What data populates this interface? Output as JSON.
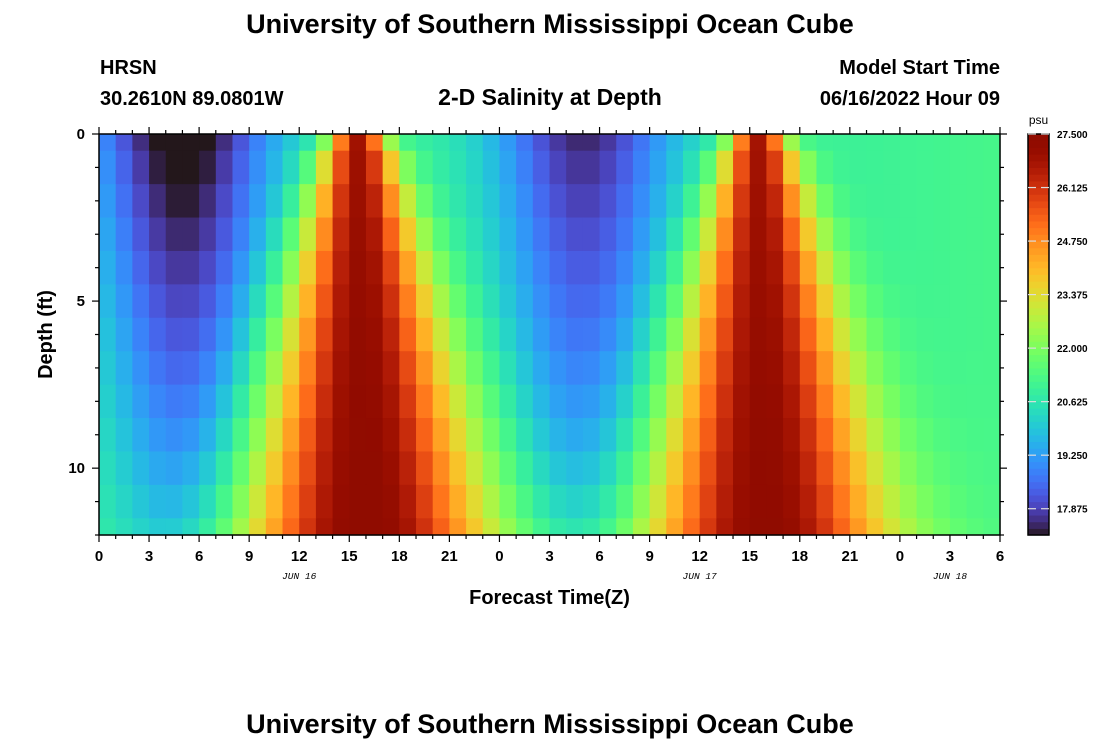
{
  "header": {
    "main_title": "University of Southern Mississippi Ocean Cube",
    "station_name": "HRSN",
    "station_coords": "30.2610N  89.0801W",
    "chart_title": "2-D Salinity at Depth",
    "model_start_label": "Model Start Time",
    "model_start_value": "06/16/2022 Hour 09"
  },
  "footer": {
    "repeated_title": "University of Southern Mississippi Ocean Cube"
  },
  "chart_data": {
    "type": "heatmap",
    "title": "2-D Salinity at Depth",
    "xlabel": "Forecast Time(Z)",
    "ylabel": "Depth (ft)",
    "x_tick_labels": [
      "0",
      "3",
      "6",
      "9",
      "12",
      "15",
      "18",
      "21",
      "0",
      "3",
      "6",
      "9",
      "12",
      "15",
      "18",
      "21",
      "0",
      "3",
      "6"
    ],
    "x_hours": [
      0,
      3,
      6,
      9,
      12,
      15,
      18,
      21,
      24,
      27,
      30,
      33,
      36,
      39,
      42,
      45,
      48,
      51,
      54
    ],
    "x_range_hours": [
      0,
      54
    ],
    "date_labels": [
      {
        "text": "JUN 16",
        "hour": 12
      },
      {
        "text": "JUN 17",
        "hour": 36
      },
      {
        "text": "JUN 18",
        "hour": 51
      }
    ],
    "y_tick_labels": [
      "0",
      "5",
      "10"
    ],
    "y_ticks_ft": [
      0,
      5,
      10
    ],
    "y_range_ft": [
      0,
      12
    ],
    "y_inverted": true,
    "depth_levels_ft": [
      0,
      1,
      2,
      3,
      4,
      5,
      6,
      7,
      8,
      9,
      10,
      11,
      12
    ],
    "time_step_hours": 1,
    "colorbar": {
      "unit": "psu",
      "min": 17.2,
      "max": 27.5,
      "tick_labels": [
        "27.500",
        "26.125",
        "24.750",
        "23.375",
        "22.000",
        "20.625",
        "19.250",
        "17.875"
      ],
      "tick_values": [
        27.5,
        26.125,
        24.75,
        23.375,
        22.0,
        20.625,
        19.25,
        17.875
      ],
      "colormap": "turbo"
    },
    "salinity_model": {
      "description": "Two peak salinity bands (tidal) near hour 16 and hour 40; max ~27.5 psu at depth, min ~17.3 psu near surface around hours 5 and 29",
      "peaks": [
        {
          "center_hour": 16,
          "surface_center_hour": 15.5,
          "max_psu": 27.5
        },
        {
          "center_hour": 40,
          "surface_center_hour": 39.5,
          "max_psu": 27.4
        }
      ],
      "troughs": [
        {
          "center_hour": 5,
          "min_psu": 17.3
        },
        {
          "center_hour": 29,
          "min_psu": 18.0
        }
      ],
      "end_value_psu": 21.5
    }
  }
}
